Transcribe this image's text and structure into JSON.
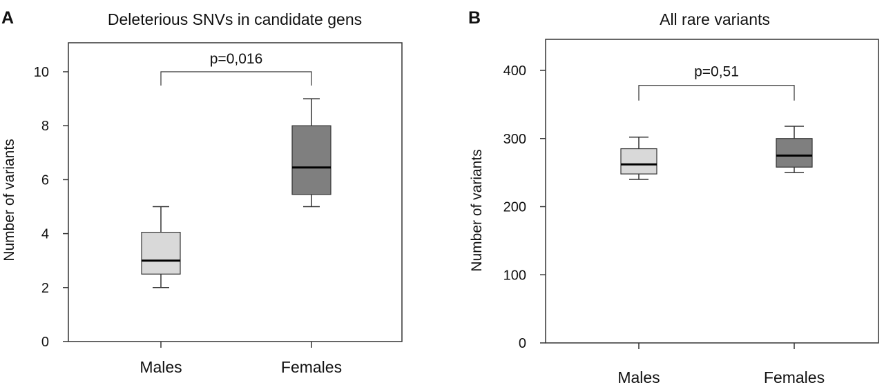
{
  "chart_data": [
    {
      "panel": "A",
      "type": "box",
      "title": "Deleterious SNVs in candidate gens",
      "ylabel": "Number  of variants",
      "xlabel": "",
      "ylim": [
        0,
        11
      ],
      "yticks": [
        0,
        2,
        4,
        6,
        8,
        10
      ],
      "categories": [
        "Males",
        "Females"
      ],
      "boxes": [
        {
          "category": "Males",
          "min": 2,
          "q1": 2.5,
          "median": 3,
          "q3": 4.05,
          "max": 5,
          "color": "#d9d9d9"
        },
        {
          "category": "Females",
          "min": 5,
          "q1": 5.45,
          "median": 6.45,
          "q3": 8.0,
          "max": 9,
          "color": "#7f7f7f"
        }
      ],
      "annotation": {
        "text": "p=0,016",
        "y": 10
      }
    },
    {
      "panel": "B",
      "type": "box",
      "title": "All rare variants",
      "ylabel": "Number  of variants",
      "xlabel": "",
      "ylim": [
        0,
        450
      ],
      "yticks": [
        0,
        100,
        200,
        300,
        400
      ],
      "categories": [
        "Males",
        "Females"
      ],
      "boxes": [
        {
          "category": "Males",
          "min": 240,
          "q1": 248,
          "median": 262,
          "q3": 285,
          "max": 302,
          "color": "#d9d9d9"
        },
        {
          "category": "Females",
          "min": 250,
          "q1": 258,
          "median": 275,
          "q3": 300,
          "max": 318,
          "color": "#7f7f7f"
        }
      ],
      "annotation": {
        "text": "p=0,51",
        "y": 378
      }
    }
  ]
}
